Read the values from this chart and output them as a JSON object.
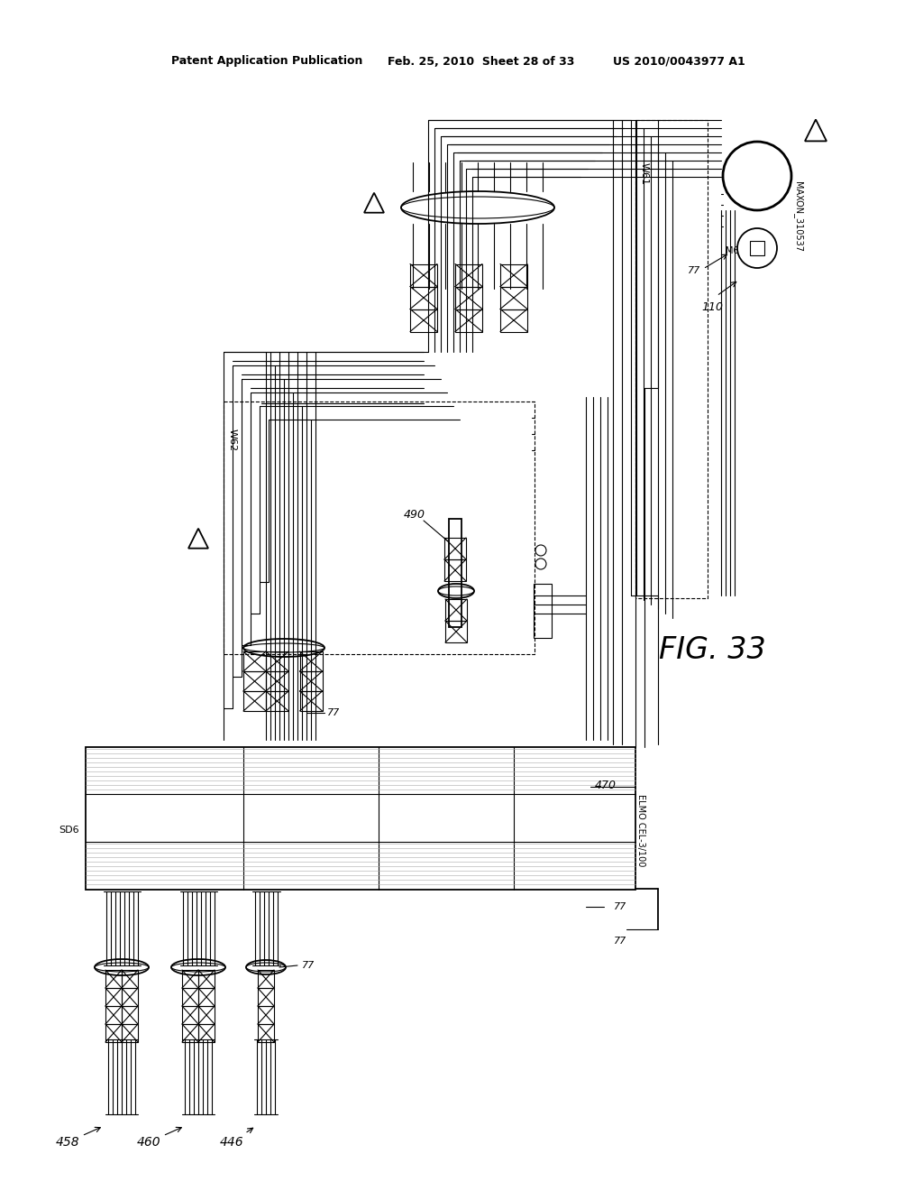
{
  "bg_color": "#ffffff",
  "header_text1": "Patent Application Publication",
  "header_text2": "Feb. 25, 2010  Sheet 28 of 33",
  "header_text3": "US 2010/0043977 A1",
  "fig_label": "FIG. 33"
}
